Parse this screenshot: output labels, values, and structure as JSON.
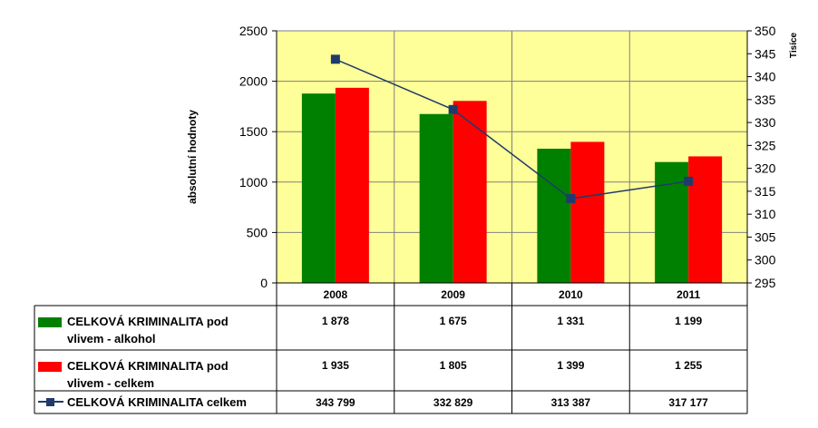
{
  "chart_data": {
    "type": "bar",
    "categories": [
      "2008",
      "2009",
      "2010",
      "2011"
    ],
    "y_left": {
      "label": "absolutní hodnoty",
      "ticks": [
        "0",
        "500",
        "1000",
        "1500",
        "2000",
        "2500"
      ],
      "range": [
        0,
        2500
      ]
    },
    "y_right": {
      "label": "Tisíce",
      "ticks": [
        "295",
        "300",
        "305",
        "310",
        "315",
        "320",
        "325",
        "330",
        "335",
        "340",
        "345",
        "350"
      ],
      "range": [
        295,
        350
      ]
    },
    "series": [
      {
        "name": "CELKOVÁ KRIMINALITA pod vlivem - alkohol",
        "name_line1": "CELKOVÁ KRIMINALITA pod",
        "name_line2": "vlivem - alkohol",
        "type": "bar",
        "axis": "left",
        "color": "#008000",
        "values": [
          1878,
          1675,
          1331,
          1199
        ],
        "labels": [
          "1 878",
          "1 675",
          "1 331",
          "1 199"
        ]
      },
      {
        "name": "CELKOVÁ KRIMINALITA pod vlivem - celkem",
        "name_line1": "CELKOVÁ KRIMINALITA pod",
        "name_line2": "vlivem - celkem",
        "type": "bar",
        "axis": "left",
        "color": "#ff0000",
        "values": [
          1935,
          1805,
          1399,
          1255
        ],
        "labels": [
          "1 935",
          "1 805",
          "1 399",
          "1 255"
        ]
      },
      {
        "name": "CELKOVÁ KRIMINALITA celkem",
        "type": "line",
        "axis": "right",
        "color": "#1f3b6b",
        "marker": "square",
        "values": [
          343.799,
          332.829,
          313.387,
          317.177
        ],
        "labels": [
          "343 799",
          "332 829",
          "313 387",
          "317 177"
        ]
      }
    ],
    "plot_background": "#ffff99",
    "grid": true,
    "legend": "data-table"
  }
}
